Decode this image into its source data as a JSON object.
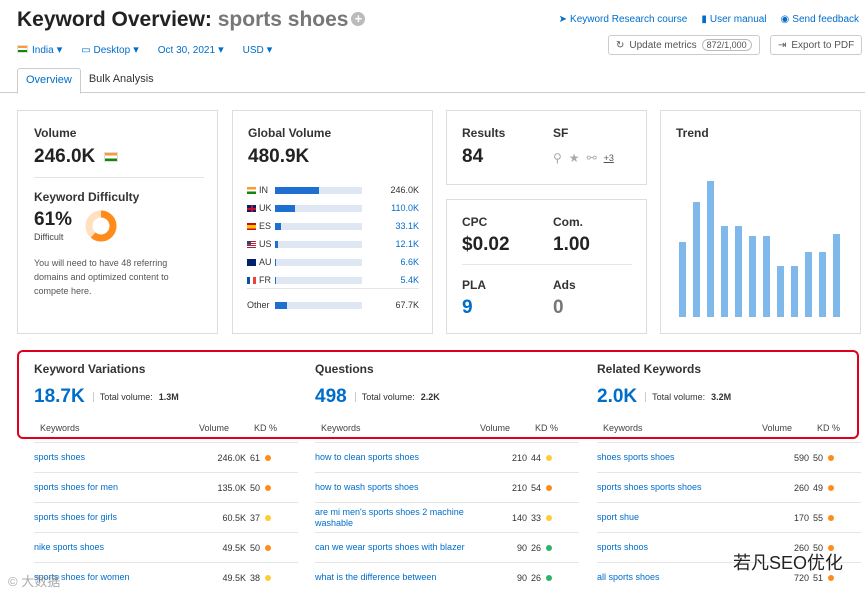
{
  "header": {
    "title_prefix": "Keyword Overview:",
    "keyword": "sports shoes",
    "links": {
      "course": "Keyword Research course",
      "manual": "User manual",
      "feedback": "Send feedback"
    },
    "update_metrics": "Update metrics",
    "update_count": "872/1,000",
    "export": "Export to PDF"
  },
  "filters": {
    "country": "India",
    "device": "Desktop",
    "date": "Oct 30, 2021",
    "currency": "USD"
  },
  "tabs": [
    "Overview",
    "Bulk Analysis"
  ],
  "volume": {
    "label": "Volume",
    "value": "246.0K"
  },
  "difficulty": {
    "label": "Keyword Difficulty",
    "value": "61%",
    "fraction": 0.61,
    "level": "Difficult",
    "note": "You will need to have 48 referring domains and optimized content to compete here.",
    "color": "#ff8c1a"
  },
  "global_volume": {
    "label": "Global Volume",
    "value": "480.9K",
    "rows": [
      {
        "code": "IN",
        "value": "246.0K",
        "fraction": 0.51,
        "link": false
      },
      {
        "code": "UK",
        "value": "110.0K",
        "fraction": 0.23,
        "link": true
      },
      {
        "code": "ES",
        "value": "33.1K",
        "fraction": 0.07,
        "link": true
      },
      {
        "code": "US",
        "value": "12.1K",
        "fraction": 0.03,
        "link": true
      },
      {
        "code": "AU",
        "value": "6.6K",
        "fraction": 0.015,
        "link": true
      },
      {
        "code": "FR",
        "value": "5.4K",
        "fraction": 0.012,
        "link": true
      }
    ],
    "other_label": "Other",
    "other_value": "67.7K",
    "other_fraction": 0.14
  },
  "results": {
    "label": "Results",
    "value": "84"
  },
  "sf": {
    "label": "SF",
    "more": "+3"
  },
  "cpc": {
    "label": "CPC",
    "value": "$0.02"
  },
  "com": {
    "label": "Com.",
    "value": "1.00"
  },
  "pla": {
    "label": "PLA",
    "value": "9"
  },
  "ads": {
    "label": "Ads",
    "value": "0"
  },
  "trend": {
    "label": "Trend",
    "values": [
      0.45,
      0.69,
      0.82,
      0.55,
      0.55,
      0.49,
      0.49,
      0.31,
      0.31,
      0.39,
      0.39,
      0.5
    ]
  },
  "variations": {
    "title": "Keyword Variations",
    "count": "18.7K",
    "total_label": "Total volume:",
    "total": "1.3M",
    "headers": [
      "Keywords",
      "Volume",
      "KD %"
    ],
    "rows": [
      {
        "keyword": "sports shoes",
        "volume": "246.0K",
        "kd": "61",
        "color": "#ff8c1a"
      },
      {
        "keyword": "sports shoes for men",
        "volume": "135.0K",
        "kd": "50",
        "color": "#ff8c1a"
      },
      {
        "keyword": "sports shoes for girls",
        "volume": "60.5K",
        "kd": "37",
        "color": "#ffcc33"
      },
      {
        "keyword": "nike sports shoes",
        "volume": "49.5K",
        "kd": "50",
        "color": "#ff8c1a"
      },
      {
        "keyword": "sports shoes for women",
        "volume": "49.5K",
        "kd": "38",
        "color": "#ffcc33"
      }
    ]
  },
  "questions": {
    "title": "Questions",
    "count": "498",
    "total_label": "Total volume:",
    "total": "2.2K",
    "headers": [
      "Keywords",
      "Volume",
      "KD %"
    ],
    "rows": [
      {
        "keyword": "how to clean sports shoes",
        "volume": "210",
        "kd": "44",
        "color": "#ffcc33"
      },
      {
        "keyword": "how to wash sports shoes",
        "volume": "210",
        "kd": "54",
        "color": "#ff8c1a"
      },
      {
        "keyword": "are mi men's sports shoes 2 machine washable",
        "volume": "140",
        "kd": "33",
        "color": "#ffcc33"
      },
      {
        "keyword": "can we wear sports shoes with blazer",
        "volume": "90",
        "kd": "26",
        "color": "#2bb56b"
      },
      {
        "keyword": "what is the difference between",
        "volume": "90",
        "kd": "26",
        "color": "#2bb56b"
      }
    ]
  },
  "related": {
    "title": "Related Keywords",
    "count": "2.0K",
    "total_label": "Total volume:",
    "total": "3.2M",
    "headers": [
      "Keywords",
      "Volume",
      "KD %"
    ],
    "rows": [
      {
        "keyword": "shoes sports shoes",
        "volume": "590",
        "kd": "50",
        "color": "#ff8c1a"
      },
      {
        "keyword": "sports shoes sports shoes",
        "volume": "260",
        "kd": "49",
        "color": "#ff8c1a"
      },
      {
        "keyword": "sport shue",
        "volume": "170",
        "kd": "55",
        "color": "#ff8c1a"
      },
      {
        "keyword": "sports shoos",
        "volume": "260",
        "kd": "50",
        "color": "#ff8c1a"
      },
      {
        "keyword": "all sports shoes",
        "volume": "720",
        "kd": "51",
        "color": "#ff8c1a"
      }
    ]
  },
  "watermark": "若凡SEO优化",
  "watermark_left": "© 大数据"
}
